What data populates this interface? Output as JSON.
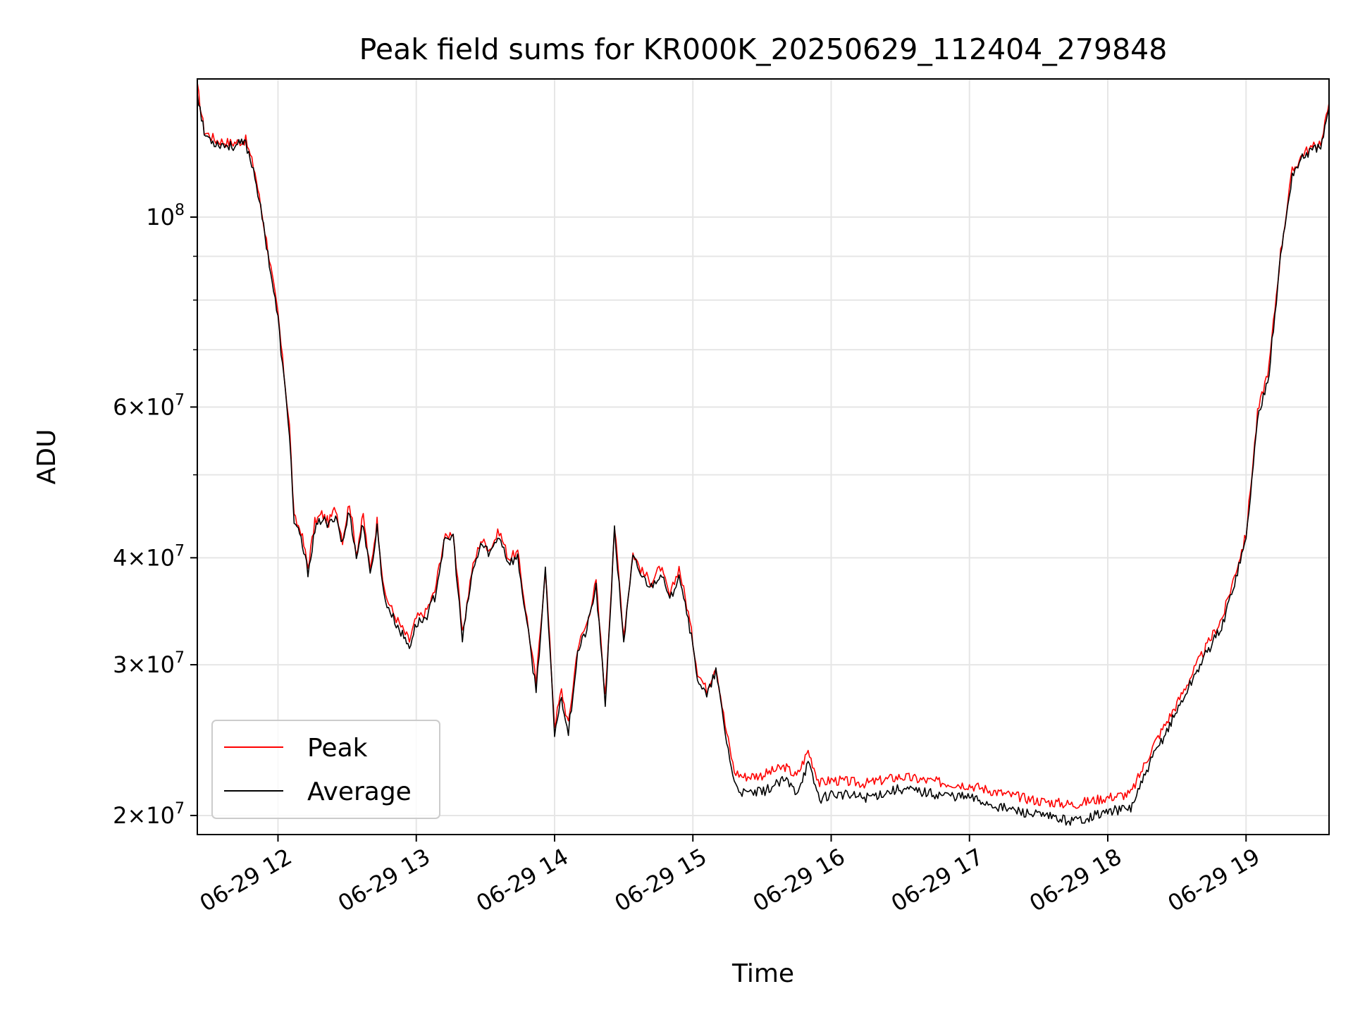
{
  "chart_data": {
    "type": "line",
    "title": "Peak field sums for KR000K_20250629_112404_279848",
    "xlabel": "Time",
    "ylabel": "ADU",
    "y_scale": "log",
    "ylim": [
      19000000,
      145000000
    ],
    "xlim": [
      "06-29 11:25",
      "06-29 19:36"
    ],
    "grid": true,
    "legend_position": "lower-left",
    "x_ticks": [
      "06-29 12",
      "06-29 13",
      "06-29 14",
      "06-29 15",
      "06-29 16",
      "06-29 17",
      "06-29 18",
      "06-29 19"
    ],
    "y_ticks": [
      {
        "label_base": "2×10",
        "label_exp": "7",
        "value": 20000000
      },
      {
        "label_base": "3×10",
        "label_exp": "7",
        "value": 30000000
      },
      {
        "label_base": "4×10",
        "label_exp": "7",
        "value": 40000000
      },
      {
        "label_base": "6×10",
        "label_exp": "7",
        "value": 60000000
      },
      {
        "label_base": "10",
        "label_exp": "8",
        "value": 100000000
      }
    ],
    "series": [
      {
        "name": "Peak",
        "color": "#ff0000"
      },
      {
        "name": "Average",
        "color": "#000000"
      }
    ],
    "x": [
      "06-29 11:25",
      "06-29 11:28",
      "06-29 11:33",
      "06-29 11:40",
      "06-29 11:46",
      "06-29 11:50",
      "06-29 11:55",
      "06-29 12:00",
      "06-29 12:02",
      "06-29 12:05",
      "06-29 12:07",
      "06-29 12:10",
      "06-29 12:13",
      "06-29 12:16",
      "06-29 12:19",
      "06-29 12:22",
      "06-29 12:25",
      "06-29 12:28",
      "06-29 12:31",
      "06-29 12:34",
      "06-29 12:37",
      "06-29 12:40",
      "06-29 12:43",
      "06-29 12:46",
      "06-29 12:50",
      "06-29 12:54",
      "06-29 12:57",
      "06-29 13:00",
      "06-29 13:04",
      "06-29 13:08",
      "06-29 13:12",
      "06-29 13:16",
      "06-29 13:20",
      "06-29 13:24",
      "06-29 13:28",
      "06-29 13:32",
      "06-29 13:36",
      "06-29 13:40",
      "06-29 13:44",
      "06-29 13:48",
      "06-29 13:52",
      "06-29 13:56",
      "06-29 14:00",
      "06-29 14:03",
      "06-29 14:06",
      "06-29 14:10",
      "06-29 14:14",
      "06-29 14:18",
      "06-29 14:22",
      "06-29 14:26",
      "06-29 14:30",
      "06-29 14:34",
      "06-29 14:38",
      "06-29 14:42",
      "06-29 14:46",
      "06-29 14:50",
      "06-29 14:54",
      "06-29 14:58",
      "06-29 15:02",
      "06-29 15:06",
      "06-29 15:10",
      "06-29 15:14",
      "06-29 15:18",
      "06-29 15:22",
      "06-29 15:30",
      "06-29 15:40",
      "06-29 15:45",
      "06-29 15:50",
      "06-29 15:55",
      "06-29 16:00",
      "06-29 16:15",
      "06-29 16:30",
      "06-29 16:45",
      "06-29 17:00",
      "06-29 17:15",
      "06-29 17:30",
      "06-29 17:45",
      "06-29 18:00",
      "06-29 18:10",
      "06-29 18:20",
      "06-29 18:30",
      "06-29 18:40",
      "06-29 18:50",
      "06-29 19:00",
      "06-29 19:05",
      "06-29 19:10",
      "06-29 19:15",
      "06-29 19:20",
      "06-29 19:25",
      "06-29 19:30",
      "06-29 19:33",
      "06-29 19:36"
    ],
    "values_average": [
      140000000,
      125000000,
      122000000,
      121000000,
      122000000,
      112000000,
      93000000,
      76000000,
      67000000,
      56000000,
      44000000,
      42000000,
      38500000,
      43000000,
      44500000,
      43500000,
      45000000,
      41500000,
      45500000,
      40000000,
      44000000,
      38000000,
      43500000,
      36000000,
      34000000,
      32500000,
      31500000,
      33500000,
      34000000,
      36000000,
      41500000,
      42500000,
      32000000,
      38000000,
      41500000,
      40500000,
      42500000,
      39500000,
      40000000,
      33500000,
      28000000,
      38500000,
      25000000,
      27500000,
      25000000,
      31000000,
      33000000,
      37000000,
      27000000,
      43000000,
      32000000,
      40000000,
      38000000,
      37000000,
      38500000,
      35500000,
      38500000,
      34000000,
      29000000,
      27500000,
      29500000,
      25000000,
      21800000,
      21200000,
      21300000,
      22000000,
      21300000,
      23000000,
      20900000,
      21200000,
      21000000,
      21500000,
      21200000,
      21000000,
      20400000,
      20000000,
      19700000,
      20200000,
      20400000,
      23500000,
      26500000,
      30000000,
      33500000,
      42000000,
      58000000,
      66000000,
      90000000,
      112000000,
      118000000,
      120000000,
      122000000,
      134000000
    ],
    "values_peak": [
      142000000,
      126000000,
      123000000,
      122000000,
      123000000,
      113000000,
      94000000,
      77000000,
      68000000,
      57000000,
      44500000,
      43000000,
      39000000,
      44000000,
      45000000,
      44000000,
      45800000,
      42000000,
      46500000,
      40500000,
      44800000,
      38500000,
      44200000,
      36500000,
      34500000,
      33000000,
      32000000,
      34000000,
      34500000,
      36500000,
      42000000,
      43000000,
      32500000,
      38500000,
      42000000,
      41000000,
      43000000,
      40000000,
      40500000,
      34000000,
      28500000,
      39000000,
      25500000,
      28000000,
      25500000,
      31500000,
      33500000,
      37500000,
      27500000,
      43500000,
      32500000,
      40500000,
      38500000,
      37500000,
      39000000,
      36000000,
      39000000,
      34500000,
      29500000,
      28000000,
      30000000,
      25500000,
      22500000,
      22200000,
      22300000,
      22800000,
      22200000,
      23800000,
      21800000,
      22000000,
      21800000,
      22200000,
      21900000,
      21700000,
      21200000,
      20800000,
      20600000,
      21000000,
      21200000,
      24200000,
      27000000,
      30500000,
      34200000,
      42500000,
      59000000,
      67000000,
      91000000,
      113000000,
      119000000,
      121000000,
      123000000,
      136000000
    ]
  }
}
